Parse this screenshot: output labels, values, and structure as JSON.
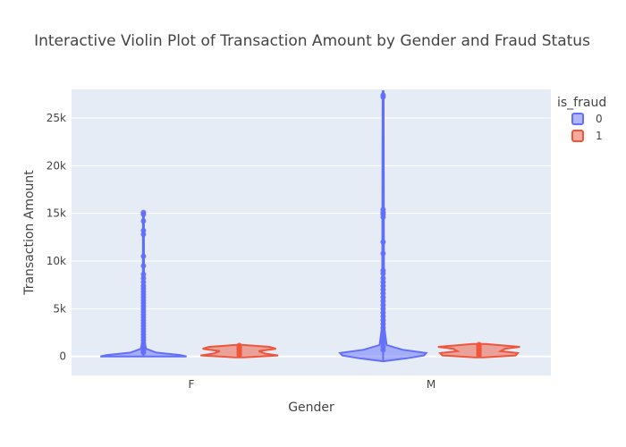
{
  "chart_data": {
    "type": "violin",
    "title": "Interactive Violin Plot of Transaction Amount by Gender and Fraud Status",
    "xlabel": "Gender",
    "ylabel": "Transaction Amount",
    "categories": [
      "F",
      "M"
    ],
    "ylim": [
      -2000,
      28000
    ],
    "yticks": [
      0,
      5000,
      10000,
      15000,
      20000,
      25000
    ],
    "ytick_labels": [
      "0",
      "5k",
      "10k",
      "15k",
      "20k",
      "25k"
    ],
    "grid": true,
    "legend": {
      "title": "is_fraud",
      "placement": "top-right",
      "entries": [
        "0",
        "1"
      ]
    },
    "series": [
      {
        "name": "0",
        "color": "#636efa",
        "violins": [
          {
            "category": "F",
            "max": 15100,
            "min": 0,
            "profile": [
              [
                0,
                1.0
              ],
              [
                150,
                0.85
              ],
              [
                400,
                0.3
              ],
              [
                800,
                0.06
              ],
              [
                1500,
                0.03
              ],
              [
                3000,
                0.02
              ],
              [
                6000,
                0.015
              ],
              [
                15100,
                0.01
              ]
            ],
            "points": [
              15100,
              14900,
              14200,
              13200,
              12800,
              10500,
              9500,
              8600,
              8200,
              7800,
              7400,
              7100,
              6800,
              6500,
              6200,
              5900,
              5600,
              5300,
              5000,
              4700,
              4400,
              4100,
              3800,
              3500,
              3200,
              2900,
              2600,
              2300,
              2000,
              1700,
              1400,
              1100,
              800,
              600,
              400
            ]
          },
          {
            "category": "M",
            "max": 27800,
            "min": -500,
            "profile": [
              [
                -500,
                0.02
              ],
              [
                -200,
                0.55
              ],
              [
                100,
                0.95
              ],
              [
                350,
                1.0
              ],
              [
                700,
                0.45
              ],
              [
                1200,
                0.08
              ],
              [
                3000,
                0.03
              ],
              [
                8000,
                0.02
              ],
              [
                27800,
                0.01
              ]
            ],
            "points": [
              27400,
              27200,
              15400,
              15100,
              14900,
              14600,
              12000,
              10800,
              9000,
              8700,
              8200,
              7800,
              7400,
              7000,
              6600,
              6200,
              5800,
              5400,
              5000,
              4600,
              4200,
              3800,
              3400,
              3000,
              2600,
              2200,
              1800,
              1400,
              1000,
              700
            ]
          }
        ]
      },
      {
        "name": "1",
        "color": "#ef553b",
        "violins": [
          {
            "category": "F",
            "max": 1200,
            "min": -100,
            "profile": [
              [
                -100,
                0.1
              ],
              [
                100,
                0.9
              ],
              [
                300,
                0.6
              ],
              [
                550,
                0.45
              ],
              [
                800,
                0.85
              ],
              [
                1000,
                0.7
              ],
              [
                1200,
                0.1
              ]
            ],
            "points": [
              1150,
              1050,
              950,
              900,
              850,
              800,
              700,
              600,
              500,
              400,
              300,
              200,
              100
            ]
          },
          {
            "category": "M",
            "max": 1300,
            "min": -100,
            "profile": [
              [
                -100,
                0.1
              ],
              [
                100,
                0.85
              ],
              [
                350,
                0.9
              ],
              [
                550,
                0.5
              ],
              [
                800,
                0.6
              ],
              [
                1000,
                0.95
              ],
              [
                1300,
                0.15
              ]
            ],
            "points": [
              1250,
              1150,
              1050,
              1000,
              950,
              900,
              800,
              700,
              600,
              500,
              400,
              300,
              200,
              100
            ]
          }
        ]
      }
    ]
  }
}
